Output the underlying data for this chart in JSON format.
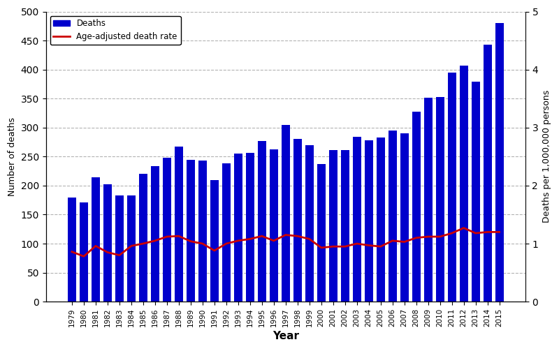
{
  "years": [
    1979,
    1980,
    1981,
    1982,
    1983,
    1984,
    1985,
    1986,
    1987,
    1988,
    1989,
    1990,
    1991,
    1992,
    1993,
    1994,
    1995,
    1996,
    1997,
    1998,
    1999,
    2000,
    2001,
    2002,
    2003,
    2004,
    2005,
    2006,
    2007,
    2008,
    2009,
    2010,
    2011,
    2012,
    2013,
    2014,
    2015
  ],
  "deaths": [
    180,
    171,
    214,
    202,
    183,
    183,
    220,
    234,
    248,
    267,
    244,
    243,
    209,
    238,
    255,
    256,
    277,
    262,
    305,
    281,
    270,
    237,
    261,
    261,
    284,
    278,
    283,
    295,
    290,
    328,
    352,
    353,
    395,
    407,
    379,
    443,
    480
  ],
  "death_rate": [
    0.86,
    0.78,
    0.96,
    0.85,
    0.8,
    0.96,
    1.0,
    1.05,
    1.12,
    1.13,
    1.04,
    1.0,
    0.88,
    1.0,
    1.05,
    1.08,
    1.13,
    1.05,
    1.15,
    1.13,
    1.08,
    0.93,
    0.95,
    0.95,
    1.0,
    0.97,
    0.95,
    1.05,
    1.03,
    1.1,
    1.12,
    1.12,
    1.18,
    1.27,
    1.18,
    1.2,
    1.2
  ],
  "bar_color": "#0000CC",
  "line_color": "#CC0000",
  "xlabel": "Year",
  "ylabel_left": "Number of deaths",
  "ylabel_right": "Deaths per 1,000,000 persons",
  "ylim_left": [
    0,
    500
  ],
  "ylim_right": [
    0,
    5
  ],
  "yticks_left": [
    0,
    50,
    100,
    150,
    200,
    250,
    300,
    350,
    400,
    450,
    500
  ],
  "yticks_right": [
    0,
    1,
    2,
    3,
    4,
    5
  ],
  "legend_deaths": "Deaths",
  "legend_rate": "Age-adjusted death rate"
}
